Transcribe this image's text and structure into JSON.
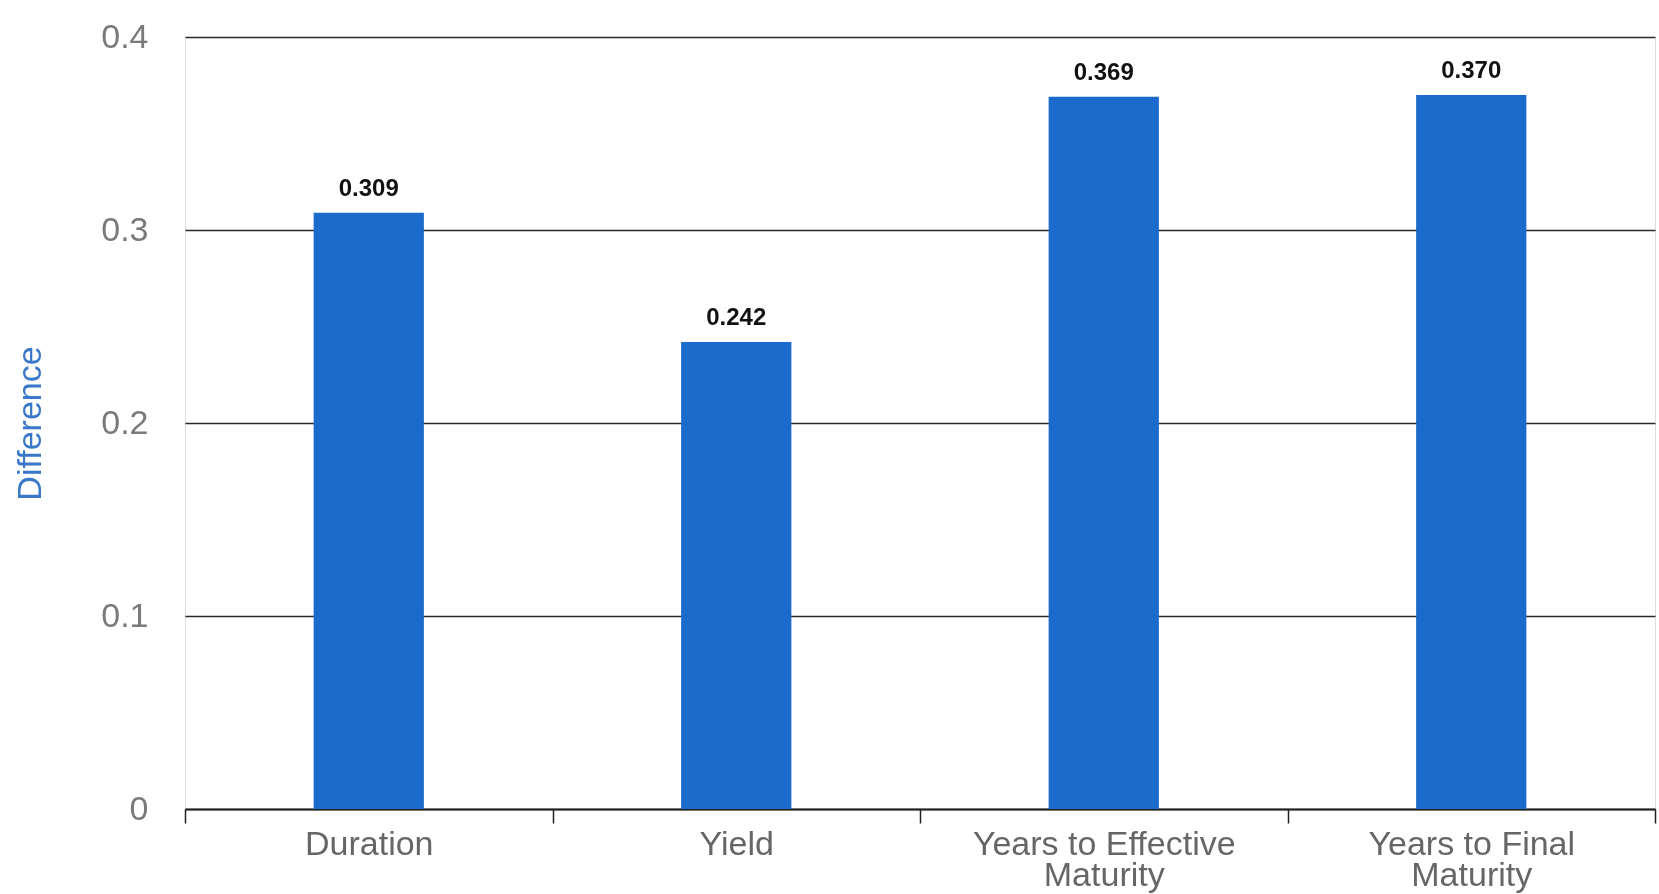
{
  "chart_data": {
    "type": "bar",
    "ylabel": "Difference",
    "categories": [
      "Duration",
      "Yield",
      "Years to Effective Maturity",
      "Years to Final Maturity"
    ],
    "values": [
      0.309,
      0.242,
      0.369,
      0.37
    ],
    "color": "#1a6bcc",
    "value_labels": [
      "0.309",
      "0.242",
      "0.369",
      "0.370"
    ],
    "ylim": [
      0,
      0.4
    ],
    "yticks": [
      0,
      0.1,
      0.2,
      0.3,
      0.4
    ],
    "grid": "y"
  }
}
